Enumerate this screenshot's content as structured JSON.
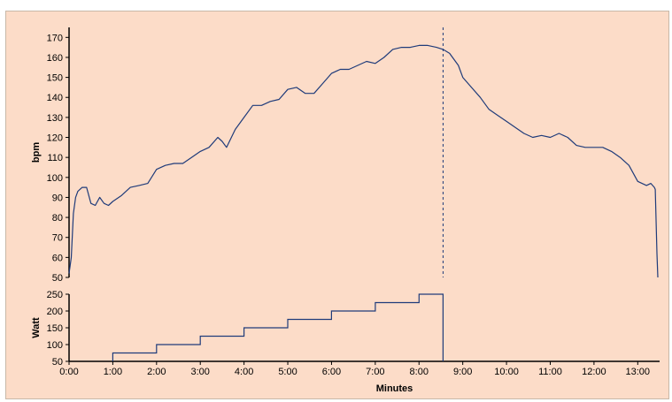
{
  "colors": {
    "background": "#fcdcc8",
    "line": "#1f3b7a",
    "axis": "#000000",
    "marker": "#1f3b7a"
  },
  "chart_data": [
    {
      "type": "line",
      "name_hidden": true,
      "ylabel": "bpm",
      "xlabel": "",
      "xlim": [
        0,
        13.5
      ],
      "ylim": [
        50,
        175
      ],
      "yticks": [
        50,
        60,
        70,
        80,
        90,
        100,
        110,
        120,
        130,
        140,
        150,
        160,
        170
      ],
      "yticklabels": [
        "50",
        "60",
        "70",
        "80",
        "90",
        "100",
        "110",
        "120",
        "130",
        "140",
        "150",
        "160",
        "170"
      ],
      "grid": false,
      "marker_x": 8.55,
      "series": [
        {
          "x": [
            0.0,
            0.05,
            0.1,
            0.15,
            0.2,
            0.3,
            0.4,
            0.5,
            0.6,
            0.7,
            0.8,
            0.9,
            1.0,
            1.2,
            1.4,
            1.6,
            1.8,
            2.0,
            2.2,
            2.4,
            2.6,
            2.8,
            3.0,
            3.2,
            3.4,
            3.5,
            3.6,
            3.8,
            4.0,
            4.2,
            4.4,
            4.6,
            4.8,
            5.0,
            5.2,
            5.4,
            5.6,
            5.8,
            6.0,
            6.2,
            6.4,
            6.6,
            6.8,
            7.0,
            7.2,
            7.4,
            7.6,
            7.8,
            8.0,
            8.2,
            8.4,
            8.55,
            8.7,
            8.9,
            9.0,
            9.2,
            9.4,
            9.6,
            9.8,
            10.0,
            10.2,
            10.4,
            10.6,
            10.8,
            11.0,
            11.2,
            11.4,
            11.6,
            11.8,
            12.0,
            12.2,
            12.4,
            12.6,
            12.8,
            13.0,
            13.2,
            13.3,
            13.38,
            13.4,
            13.44,
            13.46
          ],
          "y": [
            52,
            60,
            82,
            90,
            93,
            95,
            95,
            87,
            86,
            90,
            87,
            86,
            88,
            91,
            95,
            96,
            97,
            104,
            106,
            107,
            107,
            110,
            113,
            115,
            120,
            118,
            115,
            124,
            130,
            136,
            136,
            138,
            139,
            144,
            145,
            142,
            142,
            147,
            152,
            154,
            154,
            156,
            158,
            157,
            160,
            164,
            165,
            165,
            166,
            166,
            165,
            164,
            162,
            156,
            150,
            145,
            140,
            134,
            131,
            128,
            125,
            122,
            120,
            121,
            120,
            122,
            120,
            116,
            115,
            115,
            115,
            113,
            110,
            106,
            98,
            96,
            97,
            95,
            94,
            62,
            50
          ]
        }
      ]
    },
    {
      "type": "line",
      "ylabel": "Watt",
      "xlabel": "Minutes",
      "xlim": [
        0,
        13.5
      ],
      "ylim": [
        50,
        250
      ],
      "yticks": [
        50,
        100,
        150,
        200,
        250
      ],
      "yticklabels": [
        "50",
        "100",
        "150",
        "200",
        "250"
      ],
      "xticks": [
        0,
        1,
        2,
        3,
        4,
        5,
        6,
        7,
        8,
        9,
        10,
        11,
        12,
        13
      ],
      "xticklabels": [
        "0:00",
        "1:00",
        "2:00",
        "3:00",
        "4:00",
        "5:00",
        "6:00",
        "7:00",
        "8:00",
        "9:00",
        "10:00",
        "11:00",
        "12:00",
        "13:00"
      ],
      "grid": false,
      "step": true,
      "series": [
        {
          "x": [
            1,
            2,
            3,
            4,
            5,
            6,
            7,
            8,
            8.55,
            8.55
          ],
          "y": [
            75,
            100,
            125,
            150,
            175,
            200,
            225,
            250,
            250,
            50
          ]
        }
      ]
    }
  ]
}
